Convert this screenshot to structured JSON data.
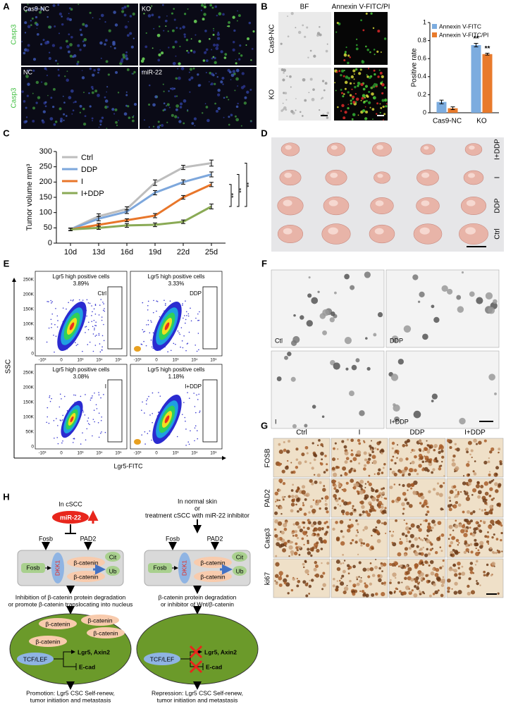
{
  "panels": {
    "a": {
      "label": "A",
      "row_labels": [
        "Casp3",
        "Casp3"
      ],
      "image_labels": [
        "Cas9-NC",
        "KO",
        "NC",
        "miR-22"
      ]
    },
    "b": {
      "label": "B",
      "column_labels": [
        "BF",
        "Annexin V-FITC/PI"
      ],
      "row_labels": [
        "Cas9-NC",
        "KO"
      ]
    },
    "c": {
      "label": "C"
    },
    "d": {
      "label": "D",
      "row_labels": [
        "I+DDP",
        "I",
        "DDP",
        "Ctrl"
      ]
    },
    "e": {
      "label": "E",
      "y_label": "SSC",
      "x_label": "Lgr5-FITC",
      "y_ticks": [
        "250K",
        "200K",
        "150K",
        "100K",
        "50K",
        "0"
      ],
      "x_ticks": [
        "-10³",
        "0",
        "10³",
        "10⁴",
        "10⁵"
      ],
      "plots": [
        {
          "title": "Lgr5 high positive cells",
          "percent": "3.89%",
          "group": "Ctrl"
        },
        {
          "title": "Lgr5 high positive cells",
          "percent": "3.33%",
          "group": "DDP"
        },
        {
          "title": "Lgr5 high positive cells",
          "percent": "3.08%",
          "group": "I"
        },
        {
          "title": "Lgr5 high positive cells",
          "percent": "1.18%",
          "group": "I+DDP"
        }
      ]
    },
    "f": {
      "label": "F",
      "image_labels": [
        "Ctl",
        "DDP",
        "I",
        "I+DDP"
      ]
    },
    "g": {
      "label": "G",
      "column_labels": [
        "Ctrl",
        "I",
        "DDP",
        "I+DDP"
      ],
      "row_labels": [
        "FOSB",
        "PAD2",
        "Casp3",
        "ki67"
      ]
    },
    "h": {
      "label": "H",
      "left": {
        "heading": [
          "In cSCC"
        ],
        "mir": "miR-22",
        "fosb": "Fosb",
        "pad2": "PAD2",
        "fosb_box": "Fosb",
        "dkk1": "DKK1",
        "beta": [
          "β-catenin",
          "β-catenin"
        ],
        "cit": "Cit",
        "ub": "Ub",
        "outcome": [
          "Inhibition of β-catenin protein degradation",
          "or promote β-catenin translocating into nucleus"
        ],
        "nucleus_beta": [
          "β-catenin",
          "β-catenin",
          "β-catenin",
          "β-catenin"
        ],
        "tcf": "TCF/LEF",
        "targets": "Lgr5, Axin2",
        "ecad": "E-cad",
        "result": [
          "Promotion: Lgr5 CSC Self-renew,",
          "tumor initiation and metastasis"
        ]
      },
      "right": {
        "heading": [
          "In normal skin",
          "or",
          "treatment cSCC with miR-22 inhibitor"
        ],
        "fosb": "Fosb",
        "pad2": "PAD2",
        "fosb_box": "Fosb",
        "dkk1": "DKK1",
        "beta": [
          "β-catenin",
          "β-catenin"
        ],
        "cit": "Cit",
        "ub": "Ub",
        "outcome": [
          "β-catenin protein degradation",
          "or  inhibitor of Wnt/β-catenin"
        ],
        "tcf": "TCF/LEF",
        "targets": "Lgr5, Axin2",
        "ecad": "E-cad",
        "result": [
          "Repression: Lgr5 CSC Self-renew,",
          "tumor initiation and metastasis"
        ]
      }
    }
  },
  "chart_data": [
    {
      "type": "bar",
      "y_label": "Positive rate",
      "categories": [
        "Cas9-NC",
        "KO"
      ],
      "series": [
        {
          "name": "Annexin V-FITC",
          "color": "#7cacdf",
          "values": [
            0.12,
            0.75
          ],
          "errors": [
            0.02,
            0.02
          ],
          "significance": [
            null,
            "**"
          ]
        },
        {
          "name": "Annexin V-FITC/PI",
          "color": "#e87a2c",
          "values": [
            0.05,
            0.65
          ],
          "errors": [
            0.015,
            0.01
          ],
          "significance": [
            null,
            "**"
          ]
        }
      ],
      "ylim": [
        0,
        1
      ],
      "yticks": [
        0,
        0.2,
        0.4,
        0.6,
        0.8,
        1
      ],
      "legend": "upper left"
    },
    {
      "type": "line",
      "y_label": "Tumor volume mm³",
      "categories": [
        "10d",
        "13d",
        "16d",
        "19d",
        "22d",
        "25d"
      ],
      "series": [
        {
          "name": "Ctrl",
          "color": "#bdbdbd",
          "values": [
            45,
            88,
            112,
            198,
            248,
            262
          ],
          "errors": [
            4,
            8,
            7,
            9,
            7,
            10
          ]
        },
        {
          "name": "DDP",
          "color": "#7da7dc",
          "values": [
            45,
            80,
            103,
            165,
            200,
            225
          ],
          "errors": [
            4,
            7,
            6,
            7,
            7,
            8
          ]
        },
        {
          "name": "I",
          "color": "#e8762a",
          "values": [
            45,
            60,
            75,
            90,
            150,
            192
          ],
          "errors": [
            4,
            5,
            5,
            7,
            6,
            7
          ]
        },
        {
          "name": "I+DDP",
          "color": "#8aaa55",
          "values": [
            45,
            50,
            58,
            60,
            70,
            120
          ],
          "errors": [
            4,
            5,
            6,
            6,
            6,
            8
          ]
        }
      ],
      "significance": [
        "**",
        "**",
        "**"
      ],
      "ylim": [
        0,
        300
      ],
      "yticks": [
        0,
        50,
        100,
        150,
        200,
        250,
        300
      ],
      "legend": "upper left"
    }
  ]
}
